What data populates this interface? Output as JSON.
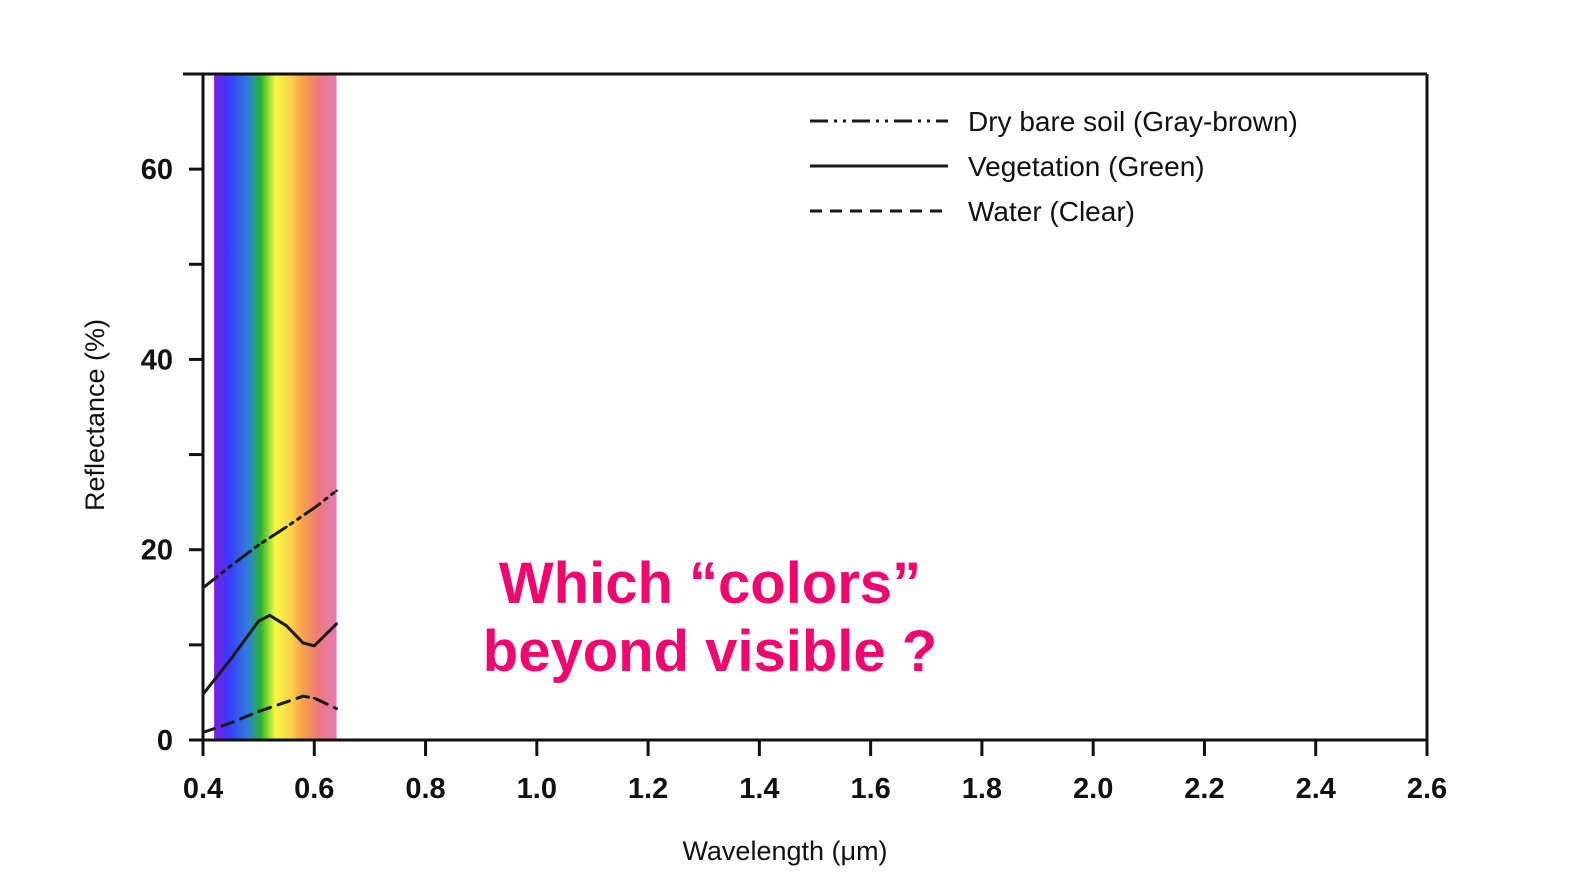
{
  "chart_data": {
    "type": "line",
    "title": "",
    "xlabel": "Wavelength (μm)",
    "ylabel": "Reflectance (%)",
    "xlim": [
      0.4,
      2.6
    ],
    "ylim": [
      0,
      70
    ],
    "x_ticks": [
      "0.4",
      "0.6",
      "0.8",
      "1.0",
      "1.2",
      "1.4",
      "1.6",
      "1.8",
      "2.0",
      "2.2",
      "2.4",
      "2.6"
    ],
    "y_ticks": [
      "0",
      "20",
      "40",
      "60"
    ],
    "legend_position": "top-right",
    "visible_band": {
      "x_start": 0.42,
      "x_end": 0.64
    },
    "series": [
      {
        "name": "Dry bare soil (Gray-brown)",
        "style": "dash-dot-dot",
        "color": "#1a1a1a",
        "x": [
          0.4,
          0.45,
          0.5,
          0.55,
          0.6,
          0.64
        ],
        "y": [
          16.0,
          18.3,
          20.5,
          22.4,
          24.4,
          26.2
        ]
      },
      {
        "name": "Vegetation (Green)",
        "style": "solid",
        "color": "#1a1a1a",
        "x": [
          0.4,
          0.45,
          0.5,
          0.52,
          0.55,
          0.58,
          0.6,
          0.64
        ],
        "y": [
          4.8,
          8.5,
          12.5,
          13.1,
          12.0,
          10.2,
          9.9,
          12.2
        ]
      },
      {
        "name": "Water (Clear)",
        "style": "dashed",
        "color": "#1a1a1a",
        "x": [
          0.4,
          0.45,
          0.5,
          0.55,
          0.58,
          0.6,
          0.64
        ],
        "y": [
          0.8,
          1.8,
          3.0,
          4.0,
          4.6,
          4.4,
          3.3
        ]
      }
    ],
    "annotation": {
      "line1": "Which “colors”",
      "line2": "beyond visible ?",
      "color": "#f0066f"
    }
  }
}
